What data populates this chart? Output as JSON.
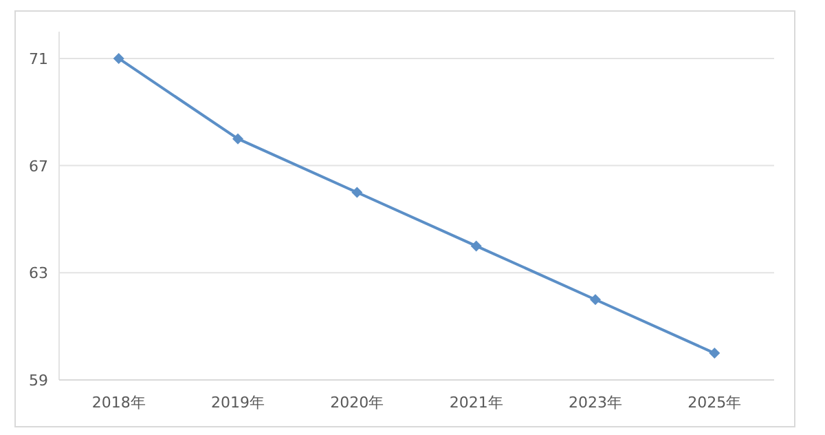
{
  "chart_data": {
    "type": "line",
    "categories": [
      "2018年",
      "2019年",
      "2020年",
      "2021年",
      "2023年",
      "2025年"
    ],
    "series": [
      {
        "color": "#5b8fc7",
        "values": [
          71,
          68,
          66,
          64,
          62,
          60
        ]
      }
    ],
    "ylim": [
      59,
      72
    ],
    "yticks": [
      59,
      63,
      67,
      71
    ],
    "grid": "y",
    "marker": "diamond",
    "line_style": "solid"
  }
}
